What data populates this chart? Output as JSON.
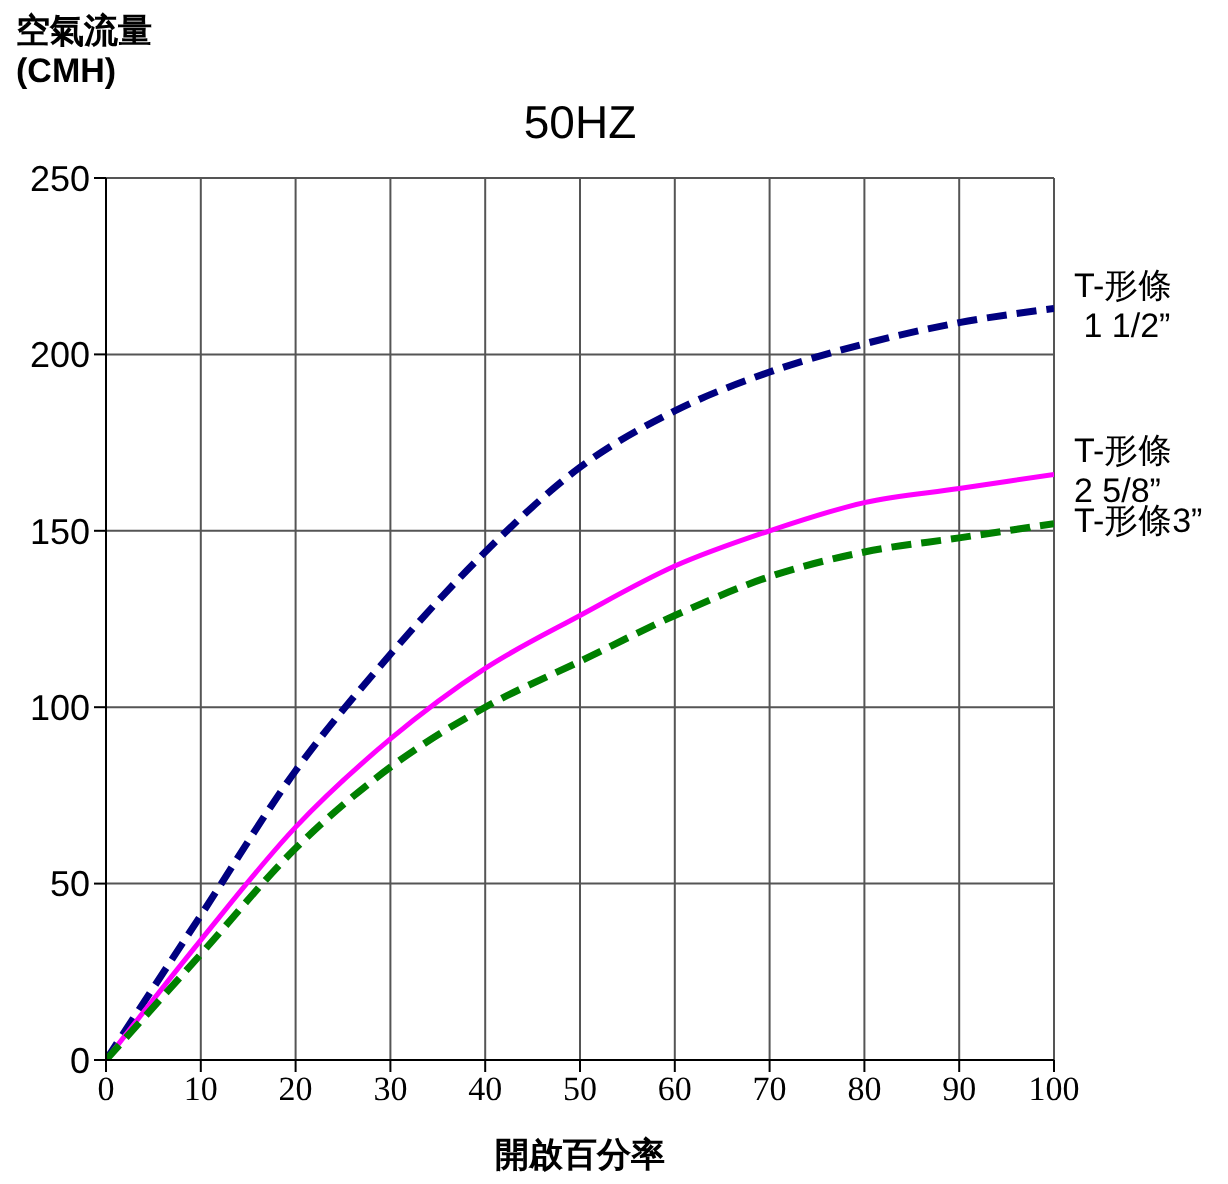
{
  "chart_data": {
    "type": "line",
    "title": "50HZ",
    "ylabel": "空氣流量\n(CMH)",
    "xlabel": "開啟百分率",
    "x": [
      0,
      10,
      20,
      30,
      40,
      50,
      60,
      70,
      80,
      90,
      100
    ],
    "series": [
      {
        "name": "T-形條\n 1 1/2”",
        "color": "#000080",
        "line_style": "dashed",
        "values": [
          0,
          41,
          82,
          115,
          144,
          168,
          184,
          195,
          203,
          209,
          213
        ]
      },
      {
        "name": "T-形條\n2 5/8”",
        "color": "#ff00ff",
        "line_style": "solid",
        "values": [
          0,
          34,
          66,
          91,
          111,
          126,
          140,
          150,
          158,
          162,
          166
        ]
      },
      {
        "name": "T-形條3”",
        "color": "#008000",
        "line_style": "dashed",
        "values": [
          0,
          30,
          60,
          83,
          100,
          113,
          126,
          137,
          144,
          148,
          152
        ]
      }
    ],
    "xlim": [
      0,
      100
    ],
    "xticks": [
      0,
      10,
      20,
      30,
      40,
      50,
      60,
      70,
      80,
      90,
      100
    ],
    "ylim": [
      0,
      250
    ],
    "yticks": [
      0,
      50,
      100,
      150,
      200,
      250
    ],
    "grid": true,
    "marker": "none"
  }
}
